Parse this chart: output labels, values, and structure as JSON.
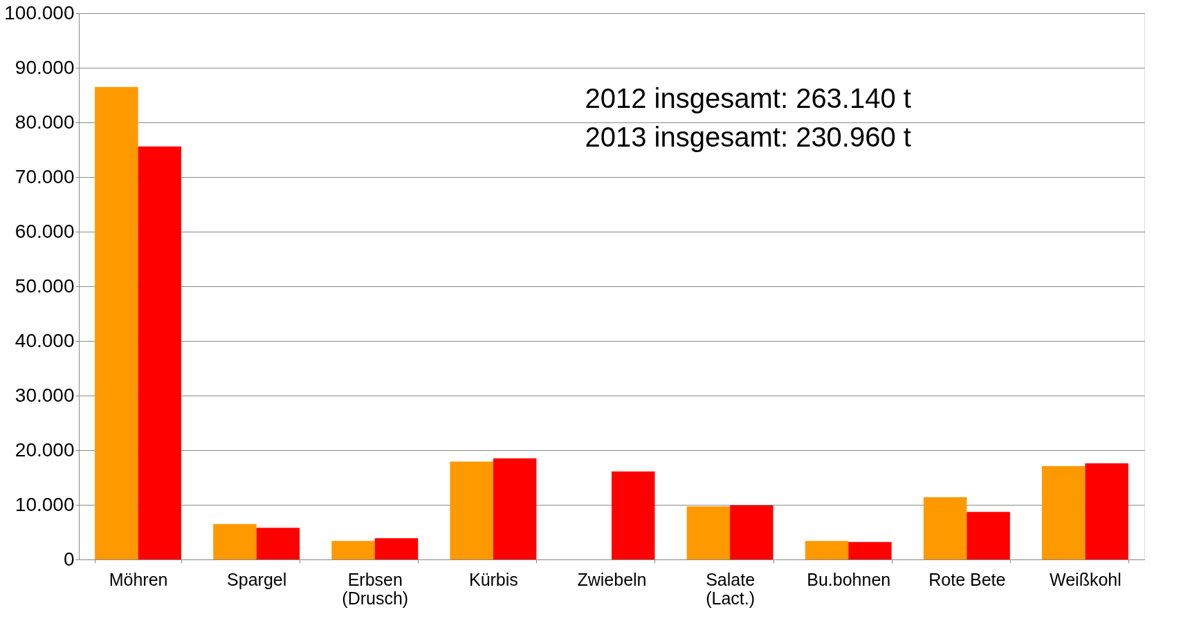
{
  "chart_data": {
    "type": "bar",
    "categories": [
      "Möhren",
      "Spargel",
      "Erbsen\n(Drusch)",
      "Kürbis",
      "Zwiebeln",
      "Salate\n(Lact.)",
      "Bu.bohnen",
      "Rote Bete",
      "Weißkohl"
    ],
    "series": [
      {
        "color": "#ff9900",
        "values": [
          86500,
          6500,
          3400,
          17900,
          null,
          9700,
          3400,
          11400,
          17100
        ]
      },
      {
        "color": "#ff0000",
        "values": [
          75600,
          5800,
          3900,
          18500,
          16100,
          9900,
          3200,
          8700,
          17600
        ]
      }
    ],
    "ylim": [
      0,
      100000
    ],
    "yticks": [
      0,
      {
        "value": 10000,
        "label": "10.000"
      },
      {
        "value": 20000,
        "label": "20.000"
      },
      {
        "value": 30000,
        "label": "30.000"
      },
      {
        "value": 40000,
        "label": "40.000"
      },
      {
        "value": 50000,
        "label": "50.000"
      },
      {
        "value": 60000,
        "label": "60.000"
      },
      {
        "value": 70000,
        "label": "70.000"
      },
      {
        "value": 80000,
        "label": "80.000"
      },
      {
        "value": 90000,
        "label": "90.000"
      },
      {
        "value": 100000,
        "label": "100.000"
      }
    ],
    "annotations": [
      "2012 insgesamt: 263.140 t",
      "2013 insgesamt: 230.960 t"
    ],
    "grid": "y",
    "legend": false
  }
}
